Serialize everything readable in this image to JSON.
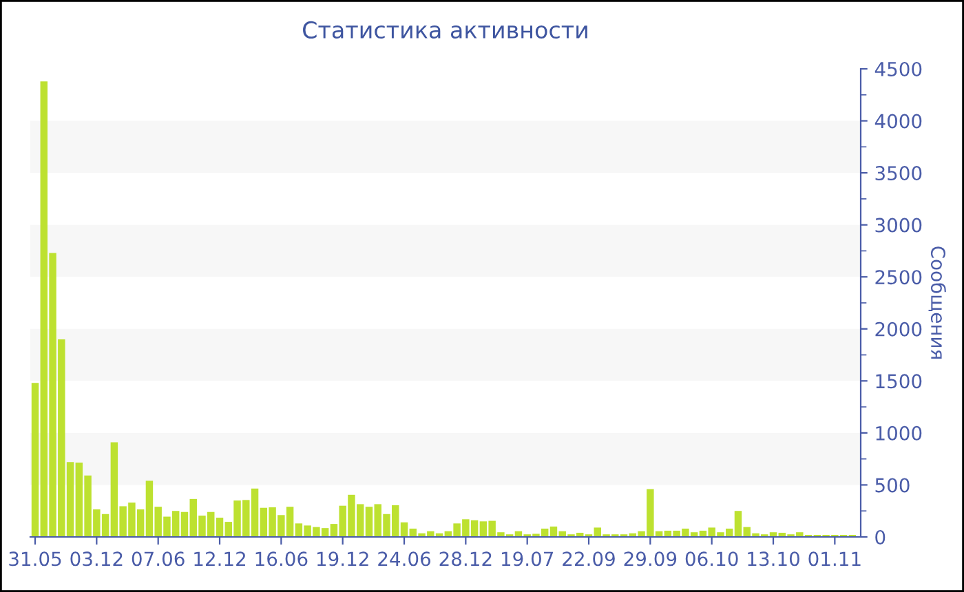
{
  "chart_data": {
    "type": "bar",
    "title": "Статистика активности",
    "ylabel": "Сообщения",
    "categories": [
      "31.05",
      null,
      null,
      null,
      null,
      null,
      null,
      "03.12",
      null,
      null,
      null,
      null,
      null,
      null,
      "07.06",
      null,
      null,
      null,
      null,
      null,
      null,
      "12.12",
      null,
      null,
      null,
      null,
      null,
      null,
      "16.06",
      null,
      null,
      null,
      null,
      null,
      null,
      "19.12",
      null,
      null,
      null,
      null,
      null,
      null,
      "24.06",
      null,
      null,
      null,
      null,
      null,
      null,
      "28.12",
      null,
      null,
      null,
      null,
      null,
      null,
      "19.07",
      null,
      null,
      null,
      null,
      null,
      null,
      "22.09",
      null,
      null,
      null,
      null,
      null,
      null,
      "29.09",
      null,
      null,
      null,
      null,
      null,
      null,
      "06.10",
      null,
      null,
      null,
      null,
      null,
      null,
      "13.10",
      null,
      null,
      null,
      null,
      null,
      null,
      "01.11",
      null,
      null
    ],
    "values": [
      1480,
      4380,
      2730,
      1900,
      720,
      715,
      590,
      265,
      220,
      910,
      295,
      330,
      265,
      540,
      290,
      195,
      250,
      240,
      365,
      205,
      240,
      185,
      145,
      350,
      355,
      465,
      280,
      285,
      210,
      290,
      130,
      110,
      95,
      85,
      125,
      300,
      405,
      315,
      290,
      315,
      220,
      305,
      140,
      80,
      35,
      55,
      35,
      55,
      130,
      170,
      160,
      150,
      155,
      45,
      25,
      55,
      25,
      30,
      80,
      100,
      55,
      25,
      40,
      25,
      90,
      25,
      25,
      25,
      35,
      55,
      460,
      55,
      60,
      60,
      80,
      45,
      60,
      90,
      45,
      80,
      250,
      95,
      35,
      25,
      45,
      40,
      25,
      45,
      20,
      20,
      20,
      20,
      20,
      20
    ],
    "color": "#bde130",
    "ylim": [
      0,
      4500
    ],
    "yticks": [
      0,
      500,
      1000,
      1500,
      2000,
      2500,
      3000,
      3500,
      4000,
      4500
    ],
    "bands": [
      {
        "axis": "y",
        "from": 500,
        "to": 1000,
        "color": "#f7f7f7"
      },
      {
        "axis": "y",
        "from": 1500,
        "to": 2000,
        "color": "#f7f7f7"
      },
      {
        "axis": "y",
        "from": 2500,
        "to": 3000,
        "color": "#f7f7f7"
      },
      {
        "axis": "y",
        "from": 3500,
        "to": 4000,
        "color": "#f7f7f7"
      }
    ],
    "grid": false,
    "legend": false
  }
}
